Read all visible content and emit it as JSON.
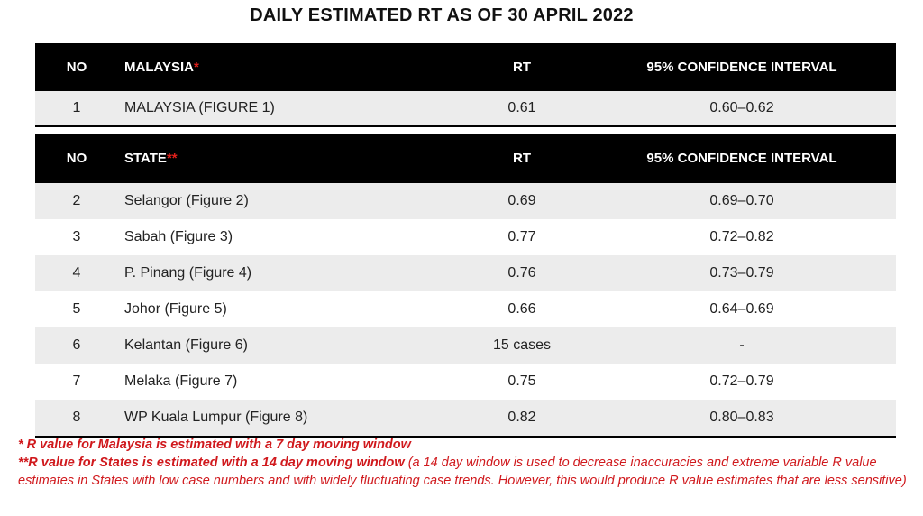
{
  "title": "DAILY ESTIMATED RT AS OF 30 APRIL 2022",
  "malaysia_table": {
    "header": {
      "no": "NO",
      "name": "MALAYSIA",
      "name_marker": "*",
      "rt": "RT",
      "ci": "95% CONFIDENCE INTERVAL"
    },
    "rows": [
      {
        "no": "1",
        "name": "MALAYSIA (FIGURE 1)",
        "rt": "0.61",
        "ci": "0.60–0.62"
      }
    ]
  },
  "state_table": {
    "header": {
      "no": "NO",
      "name": "STATE",
      "name_marker": "**",
      "rt": "RT",
      "ci": "95% CONFIDENCE INTERVAL"
    },
    "rows": [
      {
        "no": "2",
        "name": "Selangor (Figure 2)",
        "rt": "0.69",
        "ci": "0.69–0.70"
      },
      {
        "no": "3",
        "name": "Sabah (Figure 3)",
        "rt": "0.77",
        "ci": "0.72–0.82"
      },
      {
        "no": "4",
        "name": "P. Pinang (Figure 4)",
        "rt": "0.76",
        "ci": "0.73–0.79"
      },
      {
        "no": "5",
        "name": "Johor (Figure 5)",
        "rt": "0.66",
        "ci": "0.64–0.69"
      },
      {
        "no": "6",
        "name": "Kelantan (Figure 6)",
        "rt": "15 cases",
        "ci": "-"
      },
      {
        "no": "7",
        "name": "Melaka (Figure 7)",
        "rt": "0.75",
        "ci": "0.72–0.79"
      },
      {
        "no": "8",
        "name": "WP Kuala Lumpur (Figure 8)",
        "rt": "0.82",
        "ci": "0.80–0.83"
      }
    ]
  },
  "footnotes": {
    "note1": "*  R value for Malaysia is estimated with a 7 day moving window",
    "note2_bold": "**R value for States is estimated with a 14 day moving window",
    "note2_rest": " (a 14 day window is used to decrease inaccuracies and extreme variable R value estimates in States with low case numbers and with widely fluctuating case trends. However, this would produce R value estimates that are less sensitive)"
  },
  "colors": {
    "header_bg": "#000000",
    "row_shade": "#ececec",
    "asterisk": "#e0201b",
    "footnote_text": "#d0191d"
  }
}
